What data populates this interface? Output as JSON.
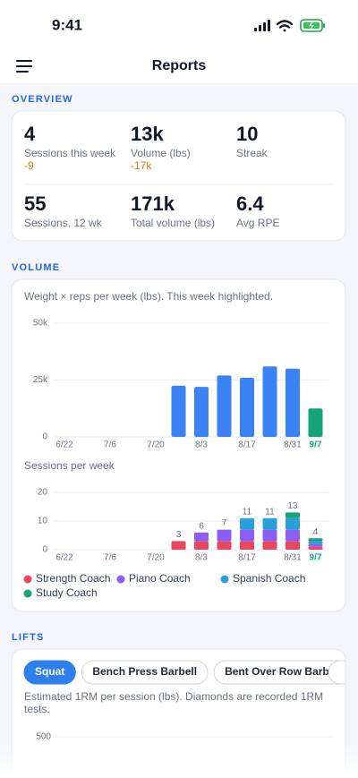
{
  "status_bar": {
    "time": "9:41"
  },
  "header": {
    "title": "Reports"
  },
  "overview": {
    "section_title": "OVERVIEW",
    "stats": [
      {
        "value": "4",
        "label": "Sessions this week",
        "delta": "-9"
      },
      {
        "value": "13k",
        "label": "Volume (lbs)",
        "delta": "-17k"
      },
      {
        "value": "10",
        "label": "Streak"
      },
      {
        "value": "55",
        "label": "Sessions, 12 wk"
      },
      {
        "value": "171k",
        "label": "Total volume (lbs)"
      },
      {
        "value": "6.4",
        "label": "Avg RPE"
      }
    ]
  },
  "volume": {
    "section_title": "VOLUME"
  },
  "chart_data": [
    {
      "type": "bar",
      "subtitle": "Weight × reps per week (lbs). This week highlighted.",
      "categories": [
        "6/22",
        null,
        "7/6",
        null,
        "7/20",
        null,
        "8/3",
        null,
        "8/17",
        null,
        "8/31",
        "9/7"
      ],
      "values": [
        null,
        null,
        null,
        null,
        null,
        22500,
        22000,
        27000,
        26000,
        31000,
        30000,
        12500
      ],
      "color": "#3b82f6",
      "highlight": "9/7",
      "highlight_color": "#16a37a",
      "ylim": [
        0,
        50000
      ],
      "yticks": [
        0,
        {
          "value": 25000,
          "label": "25k"
        },
        {
          "value": 50000,
          "label": "50k"
        }
      ],
      "grid": true
    },
    {
      "type": "stacked_bar",
      "title": "Sessions per week",
      "categories": [
        "6/22",
        null,
        "7/6",
        null,
        "7/20",
        null,
        "8/3",
        null,
        "8/17",
        null,
        "8/31",
        "9/7"
      ],
      "series": [
        {
          "name": "Strength Coach",
          "color": "#e5485f",
          "values": [
            null,
            null,
            null,
            null,
            null,
            3,
            3,
            3,
            3,
            3,
            3,
            1
          ]
        },
        {
          "name": "Piano Coach",
          "color": "#8b5cf6",
          "values": [
            null,
            null,
            null,
            null,
            null,
            null,
            3,
            4,
            4,
            4,
            4,
            1
          ]
        },
        {
          "name": "Spanish Coach",
          "color": "#2aa0d8",
          "values": [
            null,
            null,
            null,
            null,
            null,
            null,
            null,
            null,
            4,
            4,
            4,
            1
          ]
        },
        {
          "name": "Study Coach",
          "color": "#16a37a",
          "values": [
            null,
            null,
            null,
            null,
            null,
            null,
            null,
            null,
            null,
            null,
            2,
            1
          ]
        }
      ],
      "totals": [
        null,
        null,
        null,
        null,
        null,
        3,
        6,
        7,
        11,
        11,
        13,
        4
      ],
      "highlight": "9/7",
      "highlight_color": "#16a37a",
      "ylim": [
        0,
        20
      ],
      "yticks": [
        0,
        10,
        20
      ],
      "grid": true
    }
  ],
  "lifts": {
    "section_title": "LIFTS",
    "chips": [
      {
        "label": "Squat",
        "active": true
      },
      {
        "label": "Bench Press Barbell"
      },
      {
        "label": "Bent Over Row Barbell"
      }
    ],
    "note": "Estimated 1RM per session (lbs). Diamonds are recorded 1RM tests.",
    "yticks": [
      500
    ]
  }
}
